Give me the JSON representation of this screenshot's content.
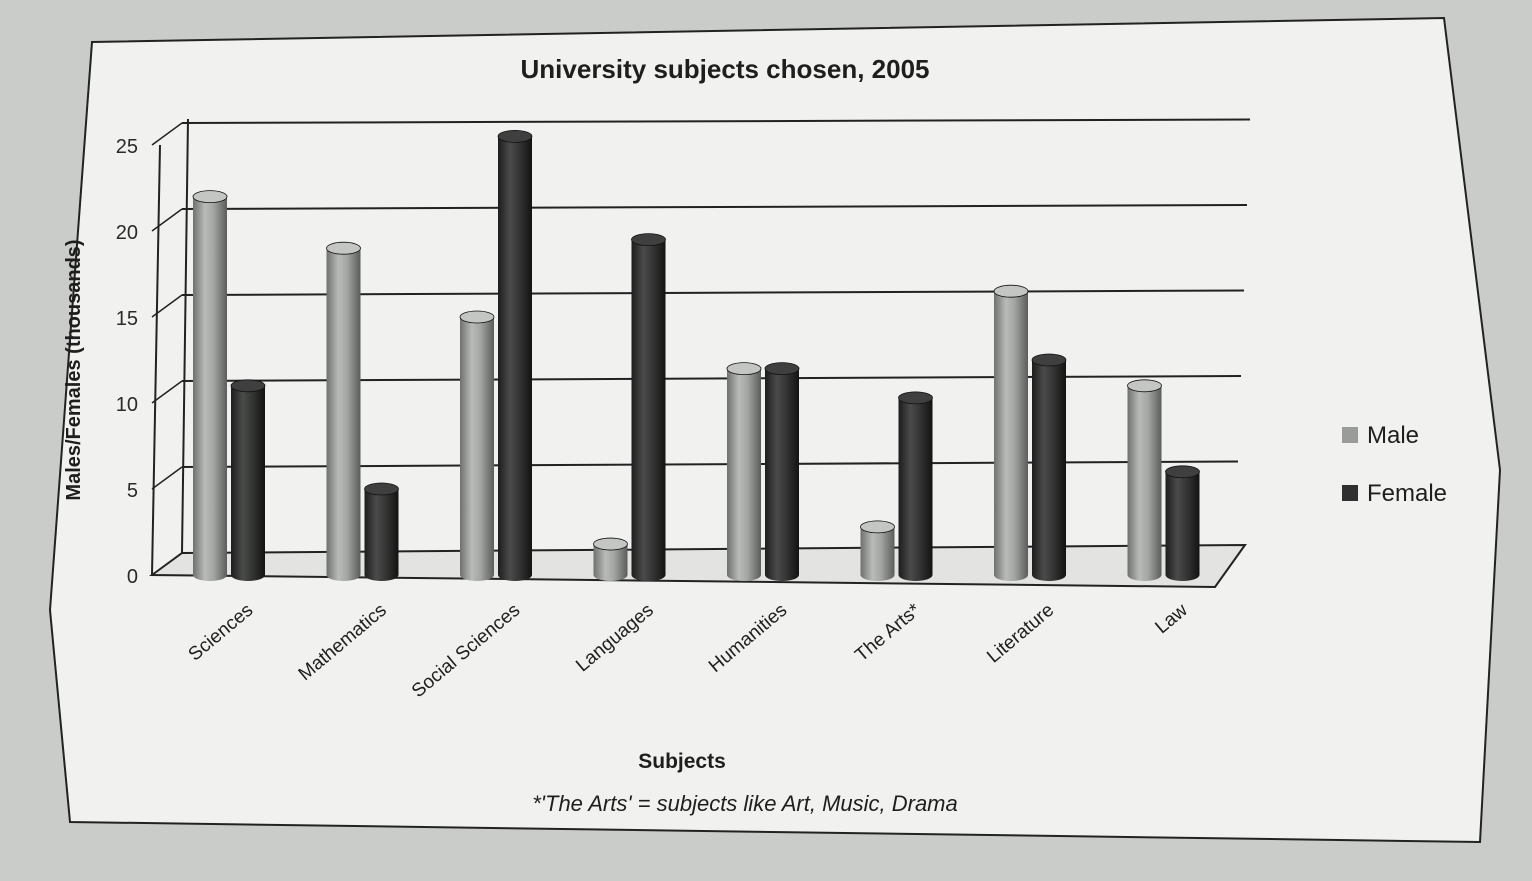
{
  "chart_data": {
    "type": "bar",
    "title": "University subjects chosen, 2005",
    "xlabel": "Subjects",
    "ylabel": "Males/Females (thousands)",
    "ylim": [
      0,
      25
    ],
    "yticks": [
      0,
      5,
      10,
      15,
      20,
      25
    ],
    "categories": [
      "Sciences",
      "Mathematics",
      "Social Sciences",
      "Languages",
      "Humanities",
      "The Arts*",
      "Literature",
      "Law"
    ],
    "series": [
      {
        "name": "Male",
        "color": "#9a9c99",
        "values": [
          22,
          19,
          15,
          1.8,
          12,
          2.8,
          16.5,
          11
        ]
      },
      {
        "name": "Female",
        "color": "#2f302f",
        "values": [
          11,
          5,
          25.5,
          19.5,
          12,
          10.3,
          12.5,
          6
        ]
      }
    ],
    "legend_position": "right",
    "grid": true,
    "footnote": "*'The Arts' = subjects like Art, Music, Drama"
  }
}
